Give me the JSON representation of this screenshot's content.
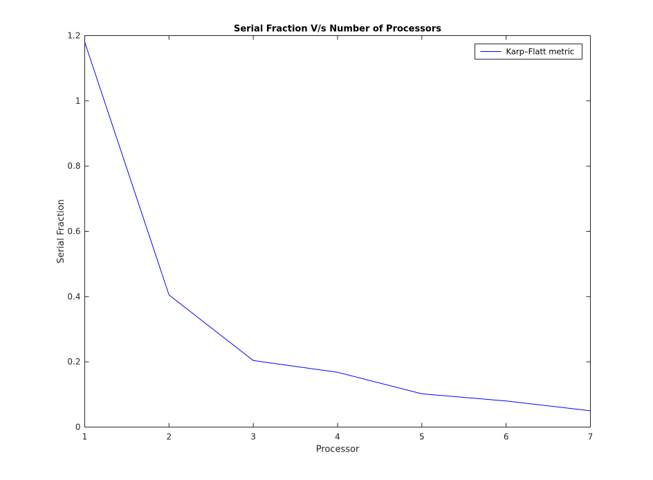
{
  "chart_data": {
    "type": "line",
    "title": "Serial Fraction V/s Number of Processors",
    "xlabel": "Processor",
    "ylabel": "Serial Fraction",
    "xlim": [
      1,
      7
    ],
    "ylim": [
      0,
      1.2
    ],
    "xticks": [
      1,
      2,
      3,
      4,
      5,
      6,
      7
    ],
    "yticks": [
      0,
      0.2,
      0.4,
      0.6,
      0.8,
      1,
      1.2
    ],
    "xtick_labels": [
      "1",
      "2",
      "3",
      "4",
      "5",
      "6",
      "7"
    ],
    "ytick_labels": [
      "0",
      "0.2",
      "0.4",
      "0.6",
      "0.8",
      "1",
      "1.2"
    ],
    "grid": false,
    "legend_position": "top-right",
    "series": [
      {
        "name": "Karp–Flatt metric",
        "color": "#0000ff",
        "x": [
          1,
          2,
          3,
          4,
          5,
          6,
          7
        ],
        "y": [
          1.18,
          0.405,
          0.204,
          0.168,
          0.102,
          0.08,
          0.05
        ]
      }
    ]
  }
}
